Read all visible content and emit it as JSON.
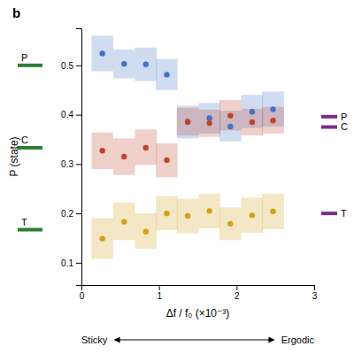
{
  "chart_data": {
    "type": "scatter",
    "title": "b",
    "xlabel": "Δf / f₀ (×10⁻³)",
    "ylabel": "P (state)",
    "xlim": [
      0,
      3.0
    ],
    "ylim": [
      0.055,
      0.575
    ],
    "xticks": [
      0,
      1,
      2,
      3
    ],
    "yticks": [
      0.1,
      0.2,
      0.3,
      0.4,
      0.5
    ],
    "grid": false,
    "background": "#ffffff",
    "series": [
      {
        "color": "#4472C4",
        "x": [
          0.27,
          0.55,
          0.83,
          1.1,
          1.37,
          1.65,
          1.92,
          2.2,
          2.47
        ],
        "values": [
          0.524,
          0.503,
          0.502,
          0.481,
          0.385,
          0.393,
          0.376,
          0.406,
          0.411
        ],
        "band_lo": [
          0.488,
          0.474,
          0.468,
          0.45,
          0.352,
          0.362,
          0.346,
          0.373,
          0.376
        ],
        "band_hi": [
          0.56,
          0.532,
          0.536,
          0.513,
          0.418,
          0.424,
          0.408,
          0.44,
          0.447
        ]
      },
      {
        "color": "#C0432A",
        "x": [
          0.27,
          0.55,
          0.83,
          1.1,
          1.37,
          1.65,
          1.92,
          2.2,
          2.47
        ],
        "values": [
          0.327,
          0.315,
          0.333,
          0.308,
          0.386,
          0.383,
          0.398,
          0.385,
          0.388
        ],
        "band_lo": [
          0.29,
          0.278,
          0.298,
          0.273,
          0.358,
          0.355,
          0.368,
          0.358,
          0.362
        ],
        "band_hi": [
          0.364,
          0.352,
          0.37,
          0.342,
          0.414,
          0.41,
          0.43,
          0.412,
          0.416
        ]
      },
      {
        "color": "#D4A017",
        "x": [
          0.27,
          0.55,
          0.83,
          1.1,
          1.37,
          1.65,
          1.92,
          2.2,
          2.47
        ],
        "values": [
          0.149,
          0.183,
          0.163,
          0.2,
          0.195,
          0.205,
          0.179,
          0.196,
          0.204
        ],
        "band_lo": [
          0.108,
          0.146,
          0.128,
          0.166,
          0.16,
          0.17,
          0.146,
          0.161,
          0.168
        ],
        "band_hi": [
          0.19,
          0.222,
          0.2,
          0.235,
          0.23,
          0.24,
          0.212,
          0.232,
          0.24
        ]
      }
    ],
    "left_marks": {
      "color": "#2E7D32",
      "labels": [
        "P",
        "C",
        "T"
      ],
      "values": [
        0.5,
        0.333,
        0.167
      ]
    },
    "right_marks": {
      "color": "#7B2D8B",
      "labels": [
        "P",
        "C",
        "T"
      ],
      "values": [
        0.396,
        0.375,
        0.2
      ]
    },
    "arrow_labels": [
      "Sticky",
      "Ergodic"
    ]
  }
}
